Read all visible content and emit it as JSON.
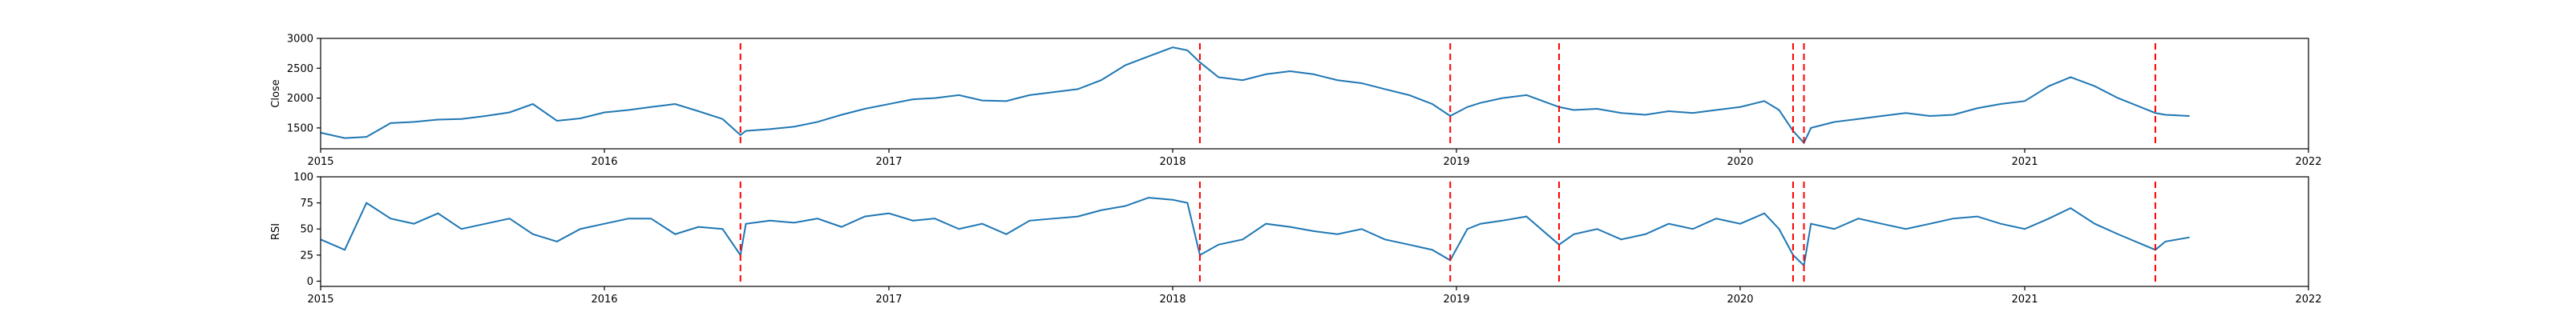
{
  "chart_data": [
    {
      "type": "line",
      "ylabel": "Close",
      "xlabel": "",
      "xlim": [
        "2015-01-01",
        "2022-01-01"
      ],
      "ylim": [
        1150,
        3000
      ],
      "x_ticks": [
        "2015",
        "2016",
        "2017",
        "2018",
        "2019",
        "2020",
        "2021",
        "2022"
      ],
      "y_ticks": [
        1500,
        2000,
        2500,
        3000
      ],
      "grid": false,
      "line_color": "#1f77b4",
      "vline_color": "#ff0000",
      "vlines": [
        "2016-06-24",
        "2018-02-05",
        "2018-12-24",
        "2019-05-13",
        "2020-03-09",
        "2020-03-23",
        "2021-06-18"
      ],
      "series": [
        {
          "x": [
            "2015-01-01",
            "2015-02-01",
            "2015-03-01",
            "2015-04-01",
            "2015-05-01",
            "2015-06-01",
            "2015-07-01",
            "2015-08-01",
            "2015-09-01",
            "2015-10-01",
            "2015-11-01",
            "2015-12-01",
            "2016-01-01",
            "2016-02-01",
            "2016-03-01",
            "2016-04-01",
            "2016-05-01",
            "2016-06-01",
            "2016-06-24",
            "2016-07-01",
            "2016-08-01",
            "2016-09-01",
            "2016-10-01",
            "2016-11-01",
            "2016-12-01",
            "2017-01-01",
            "2017-02-01",
            "2017-03-01",
            "2017-04-01",
            "2017-05-01",
            "2017-06-01",
            "2017-07-01",
            "2017-08-01",
            "2017-09-01",
            "2017-10-01",
            "2017-11-01",
            "2017-12-01",
            "2018-01-01",
            "2018-01-20",
            "2018-02-05",
            "2018-03-01",
            "2018-04-01",
            "2018-05-01",
            "2018-06-01",
            "2018-07-01",
            "2018-08-01",
            "2018-09-01",
            "2018-10-01",
            "2018-11-01",
            "2018-12-01",
            "2018-12-24",
            "2019-01-15",
            "2019-02-01",
            "2019-03-01",
            "2019-04-01",
            "2019-05-13",
            "2019-06-01",
            "2019-07-01",
            "2019-08-01",
            "2019-09-01",
            "2019-10-01",
            "2019-11-01",
            "2019-12-01",
            "2020-01-01",
            "2020-02-01",
            "2020-02-20",
            "2020-03-09",
            "2020-03-23",
            "2020-04-01",
            "2020-05-01",
            "2020-06-01",
            "2020-07-01",
            "2020-08-01",
            "2020-09-01",
            "2020-10-01",
            "2020-11-01",
            "2020-12-01",
            "2021-01-01",
            "2021-02-01",
            "2021-03-01",
            "2021-04-01",
            "2021-05-01",
            "2021-06-18",
            "2021-07-01",
            "2021-08-01"
          ],
          "values": [
            1420,
            1330,
            1350,
            1580,
            1600,
            1640,
            1650,
            1700,
            1760,
            1900,
            1620,
            1660,
            1760,
            1800,
            1850,
            1900,
            1780,
            1650,
            1380,
            1450,
            1480,
            1520,
            1600,
            1720,
            1820,
            1900,
            1980,
            2000,
            2050,
            1960,
            1950,
            2050,
            2100,
            2150,
            2300,
            2550,
            2700,
            2850,
            2800,
            2600,
            2350,
            2300,
            2400,
            2450,
            2400,
            2300,
            2250,
            2150,
            2050,
            1900,
            1700,
            1850,
            1920,
            2000,
            2050,
            1850,
            1800,
            1820,
            1750,
            1720,
            1780,
            1750,
            1800,
            1850,
            1950,
            1800,
            1450,
            1250,
            1500,
            1600,
            1650,
            1700,
            1750,
            1700,
            1720,
            1830,
            1900,
            1950,
            2200,
            2350,
            2200,
            2000,
            1750,
            1720,
            1700
          ]
        }
      ]
    },
    {
      "type": "line",
      "ylabel": "RSI",
      "xlabel": "",
      "xlim": [
        "2015-01-01",
        "2022-01-01"
      ],
      "ylim": [
        -5,
        100
      ],
      "x_ticks": [
        "2015",
        "2016",
        "2017",
        "2018",
        "2019",
        "2020",
        "2021",
        "2022"
      ],
      "y_ticks": [
        0,
        25,
        50,
        75,
        100
      ],
      "grid": false,
      "line_color": "#1f77b4",
      "vline_color": "#ff0000",
      "vlines": [
        "2016-06-24",
        "2018-02-05",
        "2018-12-24",
        "2019-05-13",
        "2020-03-09",
        "2020-03-23",
        "2021-06-18"
      ],
      "series": [
        {
          "x": [
            "2015-01-01",
            "2015-02-01",
            "2015-03-01",
            "2015-04-01",
            "2015-05-01",
            "2015-06-01",
            "2015-07-01",
            "2015-08-01",
            "2015-09-01",
            "2015-10-01",
            "2015-11-01",
            "2015-12-01",
            "2016-01-01",
            "2016-02-01",
            "2016-03-01",
            "2016-04-01",
            "2016-05-01",
            "2016-06-01",
            "2016-06-24",
            "2016-07-01",
            "2016-08-01",
            "2016-09-01",
            "2016-10-01",
            "2016-11-01",
            "2016-12-01",
            "2017-01-01",
            "2017-02-01",
            "2017-03-01",
            "2017-04-01",
            "2017-05-01",
            "2017-06-01",
            "2017-07-01",
            "2017-08-01",
            "2017-09-01",
            "2017-10-01",
            "2017-11-01",
            "2017-12-01",
            "2018-01-01",
            "2018-01-20",
            "2018-02-05",
            "2018-03-01",
            "2018-04-01",
            "2018-05-01",
            "2018-06-01",
            "2018-07-01",
            "2018-08-01",
            "2018-09-01",
            "2018-10-01",
            "2018-11-01",
            "2018-12-01",
            "2018-12-24",
            "2019-01-15",
            "2019-02-01",
            "2019-03-01",
            "2019-04-01",
            "2019-05-13",
            "2019-06-01",
            "2019-07-01",
            "2019-08-01",
            "2019-09-01",
            "2019-10-01",
            "2019-11-01",
            "2019-12-01",
            "2020-01-01",
            "2020-02-01",
            "2020-02-20",
            "2020-03-09",
            "2020-03-23",
            "2020-04-01",
            "2020-05-01",
            "2020-06-01",
            "2020-07-01",
            "2020-08-01",
            "2020-09-01",
            "2020-10-01",
            "2020-11-01",
            "2020-12-01",
            "2021-01-01",
            "2021-02-01",
            "2021-03-01",
            "2021-04-01",
            "2021-05-01",
            "2021-06-18",
            "2021-07-01",
            "2021-08-01"
          ],
          "values": [
            40,
            30,
            75,
            60,
            55,
            65,
            50,
            55,
            60,
            45,
            38,
            50,
            55,
            60,
            60,
            45,
            52,
            50,
            25,
            55,
            58,
            56,
            60,
            52,
            62,
            65,
            58,
            60,
            50,
            55,
            45,
            58,
            60,
            62,
            68,
            72,
            80,
            78,
            75,
            25,
            35,
            40,
            55,
            52,
            48,
            45,
            50,
            40,
            35,
            30,
            20,
            50,
            55,
            58,
            62,
            35,
            45,
            50,
            40,
            45,
            55,
            50,
            60,
            55,
            65,
            50,
            25,
            15,
            55,
            50,
            60,
            55,
            50,
            55,
            60,
            62,
            55,
            50,
            60,
            70,
            55,
            45,
            30,
            38,
            42
          ]
        }
      ]
    }
  ]
}
